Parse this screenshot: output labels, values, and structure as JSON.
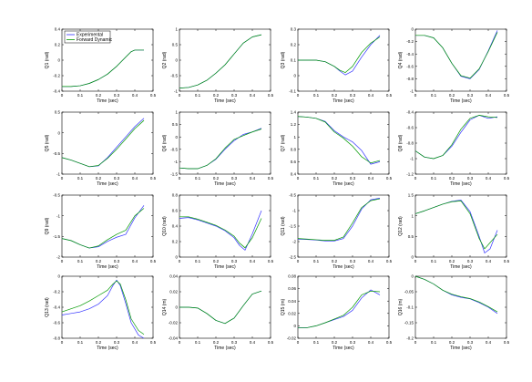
{
  "colors": {
    "experimental": "#3333ff",
    "forward_dynamic": "#009900",
    "axes": "#000000",
    "background": "#ffffff"
  },
  "legend": {
    "items": [
      "Experimental",
      "Forward Dynamic"
    ],
    "placement": "top-left of first subplot"
  },
  "chart_data": [
    {
      "type": "line",
      "ylabel": "Q1 (rad)",
      "xlabel": "Time (sec)",
      "xlim": [
        0,
        0.5
      ],
      "ylim": [
        -0.4,
        0.4
      ],
      "xticks": [
        "0",
        "0.1",
        "0.2",
        "0.3",
        "0.4",
        "0.5"
      ],
      "yticks": [
        "-0.4",
        "-0.2",
        "0",
        "0.2",
        "0.4"
      ],
      "x": [
        0,
        0.05,
        0.1,
        0.15,
        0.2,
        0.25,
        0.3,
        0.35,
        0.38,
        0.4,
        0.43,
        0.45
      ],
      "series": [
        {
          "name": "Experimental",
          "values": [
            -0.34,
            -0.34,
            -0.33,
            -0.3,
            -0.25,
            -0.18,
            -0.08,
            0.04,
            0.11,
            0.13,
            0.13,
            0.13
          ]
        },
        {
          "name": "Forward Dynamic",
          "values": [
            -0.34,
            -0.34,
            -0.33,
            -0.3,
            -0.25,
            -0.18,
            -0.08,
            0.04,
            0.11,
            0.13,
            0.13,
            0.13
          ]
        }
      ]
    },
    {
      "type": "line",
      "ylabel": "Q2 (rad)",
      "xlabel": "Time (sec)",
      "xlim": [
        0,
        0.5
      ],
      "ylim": [
        -1,
        1
      ],
      "xticks": [
        "0",
        "0.1",
        "0.2",
        "0.3",
        "0.4",
        "0.5"
      ],
      "yticks": [
        "-1",
        "-0.5",
        "0",
        "0.5",
        "1"
      ],
      "x": [
        0,
        0.05,
        0.1,
        0.15,
        0.2,
        0.25,
        0.3,
        0.35,
        0.4,
        0.45
      ],
      "series": [
        {
          "name": "Experimental",
          "values": [
            -0.9,
            -0.88,
            -0.8,
            -0.65,
            -0.42,
            -0.15,
            0.2,
            0.55,
            0.75,
            0.82
          ]
        },
        {
          "name": "Forward Dynamic",
          "values": [
            -0.9,
            -0.88,
            -0.8,
            -0.65,
            -0.42,
            -0.15,
            0.2,
            0.55,
            0.75,
            0.82
          ]
        }
      ]
    },
    {
      "type": "line",
      "ylabel": "Q3 (rad)",
      "xlabel": "Time (sec)",
      "xlim": [
        0,
        0.5
      ],
      "ylim": [
        -0.1,
        0.3
      ],
      "xticks": [
        "0",
        "0.1",
        "0.2",
        "0.3",
        "0.4",
        "0.5"
      ],
      "yticks": [
        "-0.1",
        "0",
        "0.1",
        "0.2",
        "0.3"
      ],
      "x": [
        0,
        0.05,
        0.1,
        0.15,
        0.2,
        0.23,
        0.26,
        0.3,
        0.35,
        0.4,
        0.45
      ],
      "series": [
        {
          "name": "Experimental",
          "values": [
            0.1,
            0.1,
            0.1,
            0.09,
            0.06,
            0.03,
            0.005,
            0.03,
            0.12,
            0.2,
            0.26
          ]
        },
        {
          "name": "Forward Dynamic",
          "values": [
            0.1,
            0.1,
            0.1,
            0.09,
            0.06,
            0.035,
            0.02,
            0.06,
            0.15,
            0.21,
            0.25
          ]
        }
      ]
    },
    {
      "type": "line",
      "ylabel": "Q4 (rad)",
      "xlabel": "Time (sec)",
      "xlim": [
        0,
        0.5
      ],
      "ylim": [
        -1,
        0
      ],
      "xticks": [
        "0",
        "0.1",
        "0.2",
        "0.3",
        "0.4",
        "0.5"
      ],
      "yticks": [
        "-1",
        "-0.8",
        "-0.6",
        "-0.4",
        "-0.2",
        "0"
      ],
      "x": [
        0,
        0.05,
        0.1,
        0.15,
        0.2,
        0.25,
        0.3,
        0.35,
        0.4,
        0.45
      ],
      "series": [
        {
          "name": "Experimental",
          "values": [
            -0.1,
            -0.1,
            -0.14,
            -0.3,
            -0.55,
            -0.76,
            -0.8,
            -0.65,
            -0.35,
            -0.02
          ]
        },
        {
          "name": "Forward Dynamic",
          "values": [
            -0.1,
            -0.1,
            -0.14,
            -0.3,
            -0.55,
            -0.75,
            -0.79,
            -0.64,
            -0.36,
            -0.05
          ]
        }
      ]
    },
    {
      "type": "line",
      "ylabel": "Q5 (rad)",
      "xlabel": "Time (sec)",
      "xlim": [
        0,
        0.5
      ],
      "ylim": [
        -1,
        0.5
      ],
      "xticks": [
        "0",
        "0.1",
        "0.2",
        "0.3",
        "0.4",
        "0.5"
      ],
      "yticks": [
        "-1",
        "-0.5",
        "0",
        "0.5"
      ],
      "x": [
        0,
        0.05,
        0.1,
        0.15,
        0.2,
        0.25,
        0.3,
        0.35,
        0.4,
        0.45
      ],
      "series": [
        {
          "name": "Experimental",
          "values": [
            -0.6,
            -0.66,
            -0.74,
            -0.82,
            -0.8,
            -0.6,
            -0.35,
            -0.1,
            0.15,
            0.35
          ]
        },
        {
          "name": "Forward Dynamic",
          "values": [
            -0.6,
            -0.66,
            -0.74,
            -0.82,
            -0.79,
            -0.62,
            -0.4,
            -0.15,
            0.1,
            0.3
          ]
        }
      ]
    },
    {
      "type": "line",
      "ylabel": "Q6 (rad)",
      "xlabel": "Time (sec)",
      "xlim": [
        0,
        0.5
      ],
      "ylim": [
        -1.5,
        1
      ],
      "xticks": [
        "0",
        "0.1",
        "0.2",
        "0.3",
        "0.4",
        "0.5"
      ],
      "yticks": [
        "-1.5",
        "-1",
        "-0.5",
        "0",
        "0.5",
        "1"
      ],
      "x": [
        0,
        0.05,
        0.1,
        0.15,
        0.2,
        0.25,
        0.3,
        0.35,
        0.4,
        0.45
      ],
      "series": [
        {
          "name": "Experimental",
          "values": [
            -1.25,
            -1.28,
            -1.28,
            -1.15,
            -0.9,
            -0.5,
            -0.15,
            0.1,
            0.2,
            0.35
          ]
        },
        {
          "name": "Forward Dynamic",
          "values": [
            -1.25,
            -1.28,
            -1.28,
            -1.15,
            -0.88,
            -0.45,
            -0.1,
            0.05,
            0.2,
            0.32
          ]
        }
      ]
    },
    {
      "type": "line",
      "ylabel": "Q7 (rad)",
      "xlabel": "Time (sec)",
      "xlim": [
        0,
        0.5
      ],
      "ylim": [
        0.4,
        1.4
      ],
      "xticks": [
        "0",
        "0.1",
        "0.2",
        "0.3",
        "0.4",
        "0.5"
      ],
      "yticks": [
        "0.4",
        "0.6",
        "0.8",
        "1",
        "1.2",
        "1.4"
      ],
      "x": [
        0,
        0.05,
        0.1,
        0.15,
        0.2,
        0.25,
        0.3,
        0.35,
        0.4,
        0.45
      ],
      "series": [
        {
          "name": "Experimental",
          "values": [
            1.33,
            1.32,
            1.3,
            1.25,
            1.1,
            1.0,
            0.92,
            0.78,
            0.56,
            0.6
          ]
        },
        {
          "name": "Forward Dynamic",
          "values": [
            1.33,
            1.32,
            1.3,
            1.24,
            1.08,
            0.98,
            0.85,
            0.68,
            0.58,
            0.62
          ]
        }
      ]
    },
    {
      "type": "line",
      "ylabel": "Q8 (rad)",
      "xlabel": "Time (sec)",
      "xlim": [
        0,
        0.5
      ],
      "ylim": [
        -1.2,
        -0.4
      ],
      "xticks": [
        "0",
        "0.1",
        "0.2",
        "0.3",
        "0.4",
        "0.5"
      ],
      "yticks": [
        "-1.2",
        "-1",
        "-0.8",
        "-0.6",
        "-0.4"
      ],
      "x": [
        0,
        0.05,
        0.1,
        0.15,
        0.2,
        0.25,
        0.3,
        0.35,
        0.4,
        0.45
      ],
      "series": [
        {
          "name": "Experimental",
          "values": [
            -0.9,
            -0.98,
            -1.0,
            -0.96,
            -0.84,
            -0.66,
            -0.5,
            -0.44,
            -0.48,
            -0.46
          ]
        },
        {
          "name": "Forward Dynamic",
          "values": [
            -0.9,
            -0.98,
            -1.0,
            -0.96,
            -0.82,
            -0.62,
            -0.48,
            -0.44,
            -0.46,
            -0.47
          ]
        }
      ]
    },
    {
      "type": "line",
      "ylabel": "Q9 (rad)",
      "xlabel": "Time (sec)",
      "xlim": [
        0,
        0.5
      ],
      "ylim": [
        -2,
        -0.5
      ],
      "xticks": [
        "0",
        "0.1",
        "0.2",
        "0.3",
        "0.4",
        "0.5"
      ],
      "yticks": [
        "-2",
        "-1.5",
        "-1",
        "-0.5"
      ],
      "x": [
        0,
        0.05,
        0.1,
        0.15,
        0.2,
        0.25,
        0.3,
        0.35,
        0.4,
        0.45
      ],
      "series": [
        {
          "name": "Experimental",
          "values": [
            -1.55,
            -1.6,
            -1.7,
            -1.78,
            -1.75,
            -1.62,
            -1.52,
            -1.45,
            -1.05,
            -0.75
          ]
        },
        {
          "name": "Forward Dynamic",
          "values": [
            -1.55,
            -1.6,
            -1.7,
            -1.78,
            -1.73,
            -1.58,
            -1.45,
            -1.35,
            -1.0,
            -0.82
          ]
        }
      ]
    },
    {
      "type": "line",
      "ylabel": "Q10 (rad)",
      "xlabel": "Time (sec)",
      "xlim": [
        0,
        0.5
      ],
      "ylim": [
        0,
        0.8
      ],
      "xticks": [
        "0",
        "0.1",
        "0.2",
        "0.3",
        "0.4",
        "0.5"
      ],
      "yticks": [
        "0",
        "0.2",
        "0.4",
        "0.6",
        "0.8"
      ],
      "x": [
        0,
        0.05,
        0.1,
        0.15,
        0.2,
        0.25,
        0.3,
        0.33,
        0.36,
        0.4,
        0.45
      ],
      "series": [
        {
          "name": "Experimental",
          "values": [
            0.5,
            0.51,
            0.48,
            0.44,
            0.4,
            0.34,
            0.25,
            0.15,
            0.09,
            0.3,
            0.6
          ]
        },
        {
          "name": "Forward Dynamic",
          "values": [
            0.52,
            0.52,
            0.49,
            0.45,
            0.41,
            0.35,
            0.27,
            0.18,
            0.12,
            0.25,
            0.5
          ]
        }
      ]
    },
    {
      "type": "line",
      "ylabel": "Q11 (rad)",
      "xlabel": "Time (sec)",
      "xlim": [
        0,
        0.5
      ],
      "ylim": [
        -2.5,
        -0.5
      ],
      "xticks": [
        "0",
        "0.1",
        "0.2",
        "0.3",
        "0.4",
        "0.5"
      ],
      "yticks": [
        "-2.5",
        "-2",
        "-1.5",
        "-1",
        "-0.5"
      ],
      "x": [
        0,
        0.05,
        0.1,
        0.15,
        0.2,
        0.25,
        0.3,
        0.35,
        0.4,
        0.45
      ],
      "series": [
        {
          "name": "Experimental",
          "values": [
            -1.92,
            -1.93,
            -1.95,
            -1.98,
            -1.98,
            -1.9,
            -1.5,
            -0.95,
            -0.65,
            -0.6
          ]
        },
        {
          "name": "Forward Dynamic",
          "values": [
            -1.9,
            -1.92,
            -1.94,
            -1.96,
            -1.96,
            -1.85,
            -1.4,
            -0.9,
            -0.68,
            -0.62
          ]
        }
      ]
    },
    {
      "type": "line",
      "ylabel": "Q12 (rad)",
      "xlabel": "Time (sec)",
      "xlim": [
        0,
        0.5
      ],
      "ylim": [
        0,
        1.5
      ],
      "xticks": [
        "0",
        "0.1",
        "0.2",
        "0.3",
        "0.4",
        "0.5"
      ],
      "yticks": [
        "0",
        "0.5",
        "1",
        "1.5"
      ],
      "x": [
        0,
        0.05,
        0.1,
        0.15,
        0.2,
        0.25,
        0.3,
        0.35,
        0.38,
        0.41,
        0.45
      ],
      "series": [
        {
          "name": "Experimental",
          "values": [
            1.05,
            1.12,
            1.2,
            1.28,
            1.35,
            1.38,
            1.1,
            0.5,
            0.1,
            0.2,
            0.65
          ]
        },
        {
          "name": "Forward Dynamic",
          "values": [
            1.05,
            1.12,
            1.2,
            1.28,
            1.34,
            1.36,
            1.05,
            0.45,
            0.2,
            0.35,
            0.55
          ]
        }
      ]
    },
    {
      "type": "line",
      "ylabel": "Q13 (rad)",
      "xlabel": "Time (sec)",
      "xlim": [
        0,
        0.5
      ],
      "ylim": [
        -0.8,
        0
      ],
      "xticks": [
        "0",
        "0.1",
        "0.2",
        "0.3",
        "0.4",
        "0.5"
      ],
      "yticks": [
        "-0.8",
        "-0.6",
        "-0.4",
        "-0.2",
        "0"
      ],
      "x": [
        0,
        0.05,
        0.1,
        0.15,
        0.2,
        0.25,
        0.28,
        0.3,
        0.32,
        0.35,
        0.38,
        0.42,
        0.45
      ],
      "series": [
        {
          "name": "Experimental",
          "values": [
            -0.5,
            -0.48,
            -0.46,
            -0.42,
            -0.36,
            -0.25,
            -0.12,
            -0.05,
            -0.12,
            -0.35,
            -0.6,
            -0.76,
            -0.8
          ]
        },
        {
          "name": "Forward Dynamic",
          "values": [
            -0.46,
            -0.42,
            -0.38,
            -0.32,
            -0.25,
            -0.18,
            -0.1,
            -0.06,
            -0.1,
            -0.3,
            -0.55,
            -0.7,
            -0.75
          ]
        }
      ]
    },
    {
      "type": "line",
      "ylabel": "Q14 (m)",
      "xlabel": "Time (sec)",
      "xlim": [
        0,
        0.5
      ],
      "ylim": [
        -0.04,
        0.04
      ],
      "xticks": [
        "0",
        "0.1",
        "0.2",
        "0.3",
        "0.4",
        "0.5"
      ],
      "yticks": [
        "-0.04",
        "-0.02",
        "0",
        "0.02",
        "0.04"
      ],
      "x": [
        0,
        0.05,
        0.1,
        0.15,
        0.2,
        0.25,
        0.3,
        0.35,
        0.4,
        0.45
      ],
      "series": [
        {
          "name": "Experimental",
          "values": [
            0,
            0,
            -0.001,
            -0.008,
            -0.017,
            -0.021,
            -0.014,
            0.002,
            0.017,
            0.021
          ]
        },
        {
          "name": "Forward Dynamic",
          "values": [
            0,
            0,
            -0.001,
            -0.008,
            -0.017,
            -0.021,
            -0.014,
            0.002,
            0.017,
            0.021
          ]
        }
      ]
    },
    {
      "type": "line",
      "ylabel": "Q15 (m)",
      "xlabel": "Time (sec)",
      "xlim": [
        0,
        0.5
      ],
      "ylim": [
        -0.02,
        0.08
      ],
      "xticks": [
        "0",
        "0.1",
        "0.2",
        "0.3",
        "0.4",
        "0.5"
      ],
      "yticks": [
        "-0.02",
        "0",
        "0.02",
        "0.04",
        "0.06",
        "0.08"
      ],
      "x": [
        0,
        0.05,
        0.1,
        0.15,
        0.2,
        0.25,
        0.3,
        0.35,
        0.4,
        0.45
      ],
      "series": [
        {
          "name": "Experimental",
          "values": [
            -0.003,
            -0.003,
            0.0,
            0.005,
            0.01,
            0.015,
            0.025,
            0.045,
            0.058,
            0.05
          ]
        },
        {
          "name": "Forward Dynamic",
          "values": [
            -0.003,
            -0.003,
            0.0,
            0.005,
            0.011,
            0.017,
            0.03,
            0.05,
            0.056,
            0.055
          ]
        }
      ]
    },
    {
      "type": "line",
      "ylabel": "Q16 (m)",
      "xlabel": "Time (sec)",
      "xlim": [
        0,
        0.5
      ],
      "ylim": [
        -0.2,
        0
      ],
      "xticks": [
        "0",
        "0.1",
        "0.2",
        "0.3",
        "0.4",
        "0.5"
      ],
      "yticks": [
        "-0.2",
        "-0.15",
        "-0.1",
        "-0.05",
        "0"
      ],
      "x": [
        0,
        0.05,
        0.1,
        0.15,
        0.2,
        0.25,
        0.3,
        0.35,
        0.4,
        0.45
      ],
      "series": [
        {
          "name": "Experimental",
          "values": [
            0,
            -0.01,
            -0.025,
            -0.045,
            -0.06,
            -0.068,
            -0.073,
            -0.085,
            -0.1,
            -0.12
          ]
        },
        {
          "name": "Forward Dynamic",
          "values": [
            0,
            -0.01,
            -0.025,
            -0.045,
            -0.058,
            -0.066,
            -0.072,
            -0.083,
            -0.098,
            -0.115
          ]
        }
      ]
    }
  ]
}
